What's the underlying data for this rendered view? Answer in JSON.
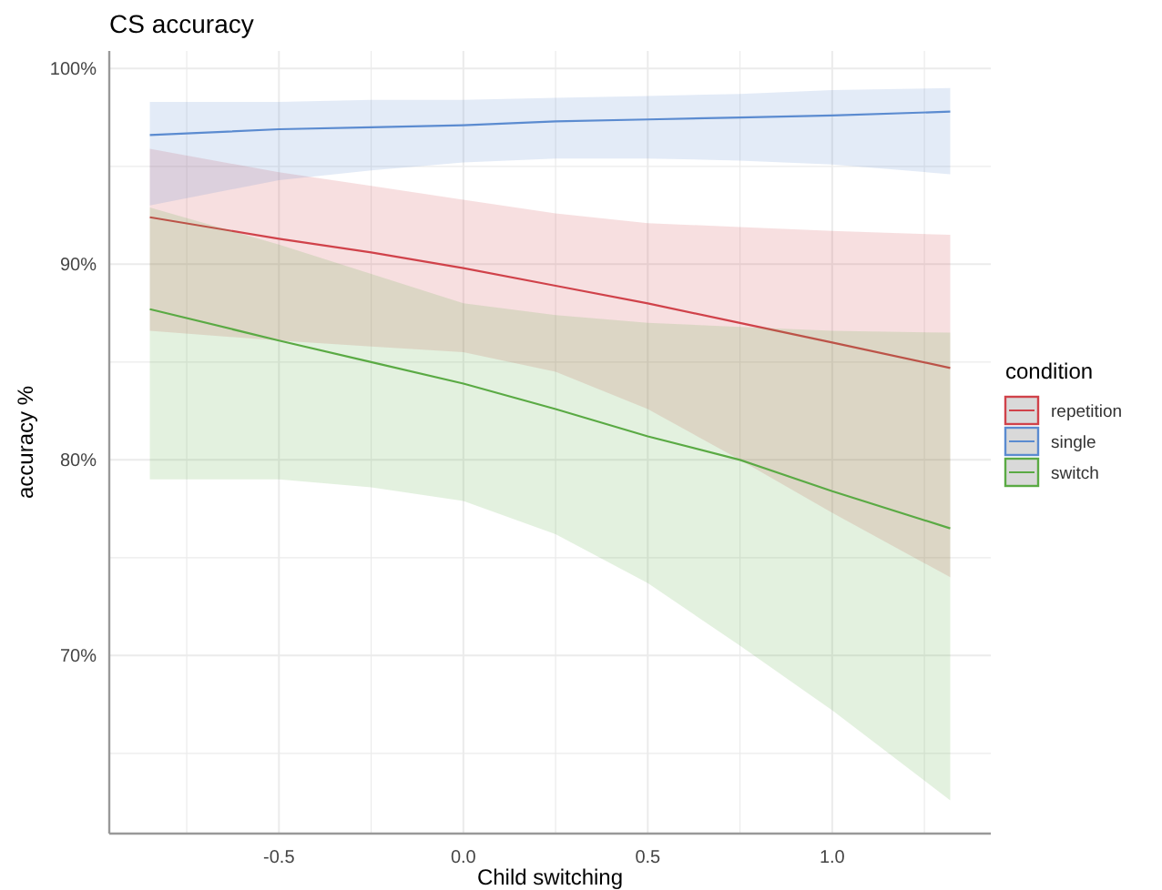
{
  "chart_data": {
    "type": "line",
    "title": "CS accuracy",
    "xlabel": "Child switching",
    "ylabel": "accuracy %",
    "legend_title": "condition",
    "xlim": [
      -0.96,
      1.43
    ],
    "ylim": [
      60.9,
      100.9
    ],
    "xticks": [
      {
        "value": -0.75,
        "label": null
      },
      -0.5,
      {
        "value": -0.25,
        "label": null
      },
      {
        "value": 0,
        "label": "0.0"
      },
      {
        "value": 0.25,
        "label": null
      },
      0.5,
      {
        "value": 0.75,
        "label": null
      },
      {
        "value": 1,
        "label": "1.0"
      },
      {
        "value": 1.25,
        "label": null
      }
    ],
    "yticks": [
      {
        "value": 65,
        "label": null
      },
      {
        "value": 70,
        "label": "70%"
      },
      {
        "value": 75,
        "label": null
      },
      {
        "value": 80,
        "label": "80%"
      },
      {
        "value": 85,
        "label": null
      },
      {
        "value": 90,
        "label": "90%"
      },
      {
        "value": 95,
        "label": null
      },
      {
        "value": 100,
        "label": "100%"
      }
    ],
    "grid": true,
    "legend": "right",
    "x": [
      -0.85,
      -0.5,
      -0.25,
      0,
      0.25,
      0.5,
      0.75,
      1.0,
      1.32
    ],
    "series": [
      {
        "name": "repetition",
        "color": "#d0424a",
        "values": [
          92.4,
          91.3,
          90.6,
          89.8,
          88.9,
          88.0,
          87.0,
          86.0,
          84.7
        ],
        "lower": [
          86.6,
          86.1,
          85.8,
          85.5,
          84.5,
          82.6,
          80.0,
          77.3,
          74.0
        ],
        "upper": [
          95.9,
          94.7,
          94.0,
          93.3,
          92.6,
          92.1,
          91.9,
          91.7,
          91.5
        ]
      },
      {
        "name": "single",
        "color": "#5b8bd0",
        "values": [
          96.6,
          96.9,
          97.0,
          97.1,
          97.3,
          97.4,
          97.5,
          97.6,
          97.8
        ],
        "lower": [
          93.0,
          94.3,
          94.8,
          95.2,
          95.4,
          95.4,
          95.3,
          95.1,
          94.6
        ],
        "upper": [
          98.3,
          98.3,
          98.4,
          98.4,
          98.5,
          98.6,
          98.7,
          98.9,
          99.0
        ]
      },
      {
        "name": "switch",
        "color": "#5aaa44",
        "values": [
          87.7,
          86.1,
          85.0,
          83.9,
          82.6,
          81.2,
          80.0,
          78.4,
          76.5
        ],
        "lower": [
          79.0,
          79.0,
          78.6,
          77.9,
          76.2,
          73.7,
          70.5,
          67.2,
          62.6
        ],
        "upper": [
          92.9,
          91.0,
          89.5,
          88.0,
          87.4,
          87.0,
          86.8,
          86.6,
          86.5
        ]
      }
    ]
  }
}
